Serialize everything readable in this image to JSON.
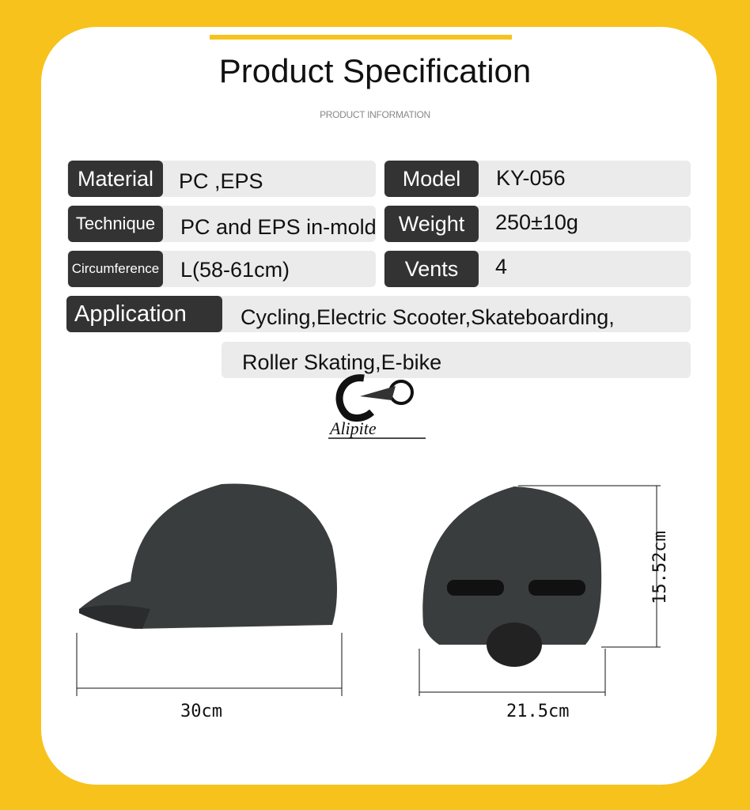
{
  "header": {
    "title": "Product Specification",
    "subtitle": "PRODUCT INFORMATION"
  },
  "specs": {
    "material": {
      "label": "Material",
      "value": "PC ,EPS"
    },
    "model": {
      "label": "Model",
      "value": "KY-056"
    },
    "technique": {
      "label": "Technique",
      "value": "PC and EPS in-mold"
    },
    "weight": {
      "label": "Weight",
      "value": "250±10g"
    },
    "circumference": {
      "label": "Circumference",
      "value": "L(58-61cm)"
    },
    "vents": {
      "label": "Vents",
      "value": "4"
    },
    "application": {
      "label": "Application",
      "value_line1": "Cycling,Electric Scooter,Skateboarding,",
      "value_line2": "Roller Skating,E-bike"
    }
  },
  "logo": {
    "text": "Alipite"
  },
  "dimensions": {
    "side_length": "30cm",
    "back_width": "21.5cm",
    "height": "15.52cm"
  },
  "colors": {
    "background": "#f7c21b",
    "label_bg": "#333333",
    "row_bg": "#ebebeb"
  }
}
